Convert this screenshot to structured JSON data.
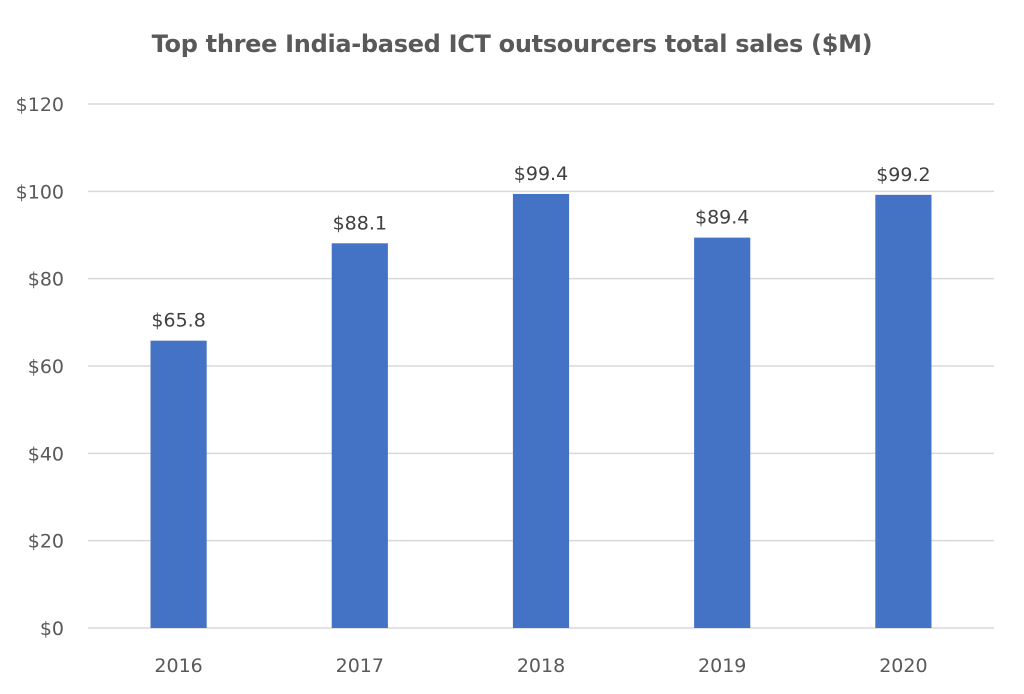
{
  "chart_data": {
    "type": "bar",
    "title": "Top three India-based ICT outsourcers total sales ($M)",
    "xlabel": "",
    "ylabel": "",
    "categories": [
      "2016",
      "2017",
      "2018",
      "2019",
      "2020"
    ],
    "values": [
      65.8,
      88.1,
      99.4,
      89.4,
      99.2
    ],
    "data_labels": [
      "$65.8",
      "$88.1",
      "$99.4",
      "$89.4",
      "$99.2"
    ],
    "ylim": [
      0,
      120
    ],
    "yticks": [
      0,
      20,
      40,
      60,
      80,
      100,
      120
    ],
    "ytick_labels": [
      "$0",
      "$20",
      "$40",
      "$60",
      "$80",
      "$100",
      "$120"
    ],
    "grid": true,
    "legend": "none",
    "bar_color": "#4472c4"
  }
}
